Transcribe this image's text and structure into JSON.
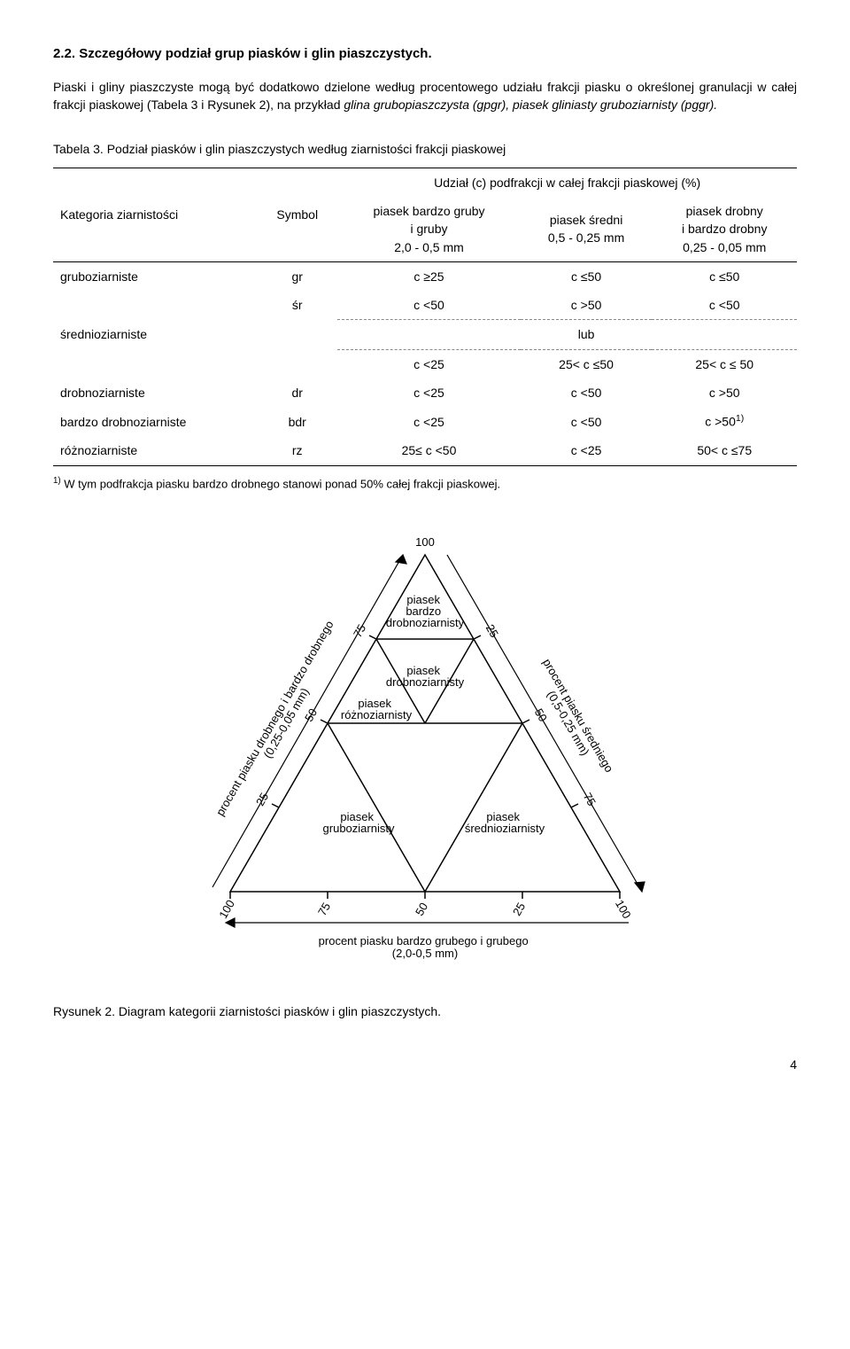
{
  "section": {
    "number": "2.2.",
    "title": "Szczegółowy podział grup piasków i glin piaszczystych."
  },
  "paragraph": {
    "pre_italic": "Piaski i gliny piaszczyste mogą być dodatkowo dzielone według procentowego udziału frakcji piasku o określonej granulacji w całej frakcji piaskowej (Tabela 3 i Rysunek 2), na przykład ",
    "italic": "glina grubopiaszczysta (gpgr), piasek gliniasty gruboziarnisty (pggr).",
    "post_italic": ""
  },
  "table": {
    "caption": "Tabela 3. Podział piasków i glin piaszczystych według ziarnistości frakcji piaskowej",
    "head_superlabel": "Udział (c) podfrakcji w całej frakcji piaskowej (%)",
    "head_cat": "Kategoria ziarnistości",
    "head_sym": "Symbol",
    "head_col1_a": "piasek bardzo gruby",
    "head_col1_b": "i gruby",
    "head_col1_c": "2,0 - 0,5 mm",
    "head_col2_a": "piasek średni",
    "head_col2_b": "0,5 - 0,25 mm",
    "head_col3_a": "piasek drobny",
    "head_col3_b": "i bardzo drobny",
    "head_col3_c": "0,25 - 0,05 mm",
    "rows": [
      {
        "cat": "gruboziarniste",
        "sym": "gr",
        "c1": "c ≥25",
        "c2": "c ≤50",
        "c3": "c ≤50"
      },
      {
        "cat_mid": "średnioziarniste",
        "sym": "śr",
        "r1": {
          "c1": "c <50",
          "c2": "c >50",
          "c3": "c <50"
        },
        "lub": "lub",
        "r2": {
          "c1": "c <25",
          "c2": "25< c ≤50",
          "c3": "25< c ≤ 50"
        }
      },
      {
        "cat": "drobnoziarniste",
        "sym": "dr",
        "c1": "c <25",
        "c2": "c <50",
        "c3": "c >50"
      },
      {
        "cat": "bardzo drobnoziarniste",
        "sym": "bdr",
        "c1": "c <25",
        "c2": "c <50",
        "c3_html": "c >50<sup>1)</sup>"
      },
      {
        "cat": "różnoziarniste",
        "sym": "rz",
        "c1": "25≤ c <50",
        "c2": "c <25",
        "c3": "50< c ≤75"
      }
    ],
    "footnote_html": "<sup>1)</sup> W tym podfrakcja piasku bardzo drobnego stanowi ponad 50% całej frakcji piaskowej."
  },
  "triangle": {
    "type": "ternary-diagram",
    "stroke": "#000000",
    "fill": "#ffffff",
    "tick_values": [
      "25",
      "50",
      "75",
      "100"
    ],
    "top_tick": "100",
    "axis_left_label_a": "procent piasku drobnego i bardzo drobnego",
    "axis_left_label_b": "(0,25-0,05 mm)",
    "axis_right_label_a": "procent piasku średniego",
    "axis_right_label_b": "(0,5-0,25 mm)",
    "axis_bottom_label_a": "procent piasku bardzo grubego i grubego",
    "axis_bottom_label_b": "(2,0-0,5 mm)",
    "region_labels": {
      "top1": "piasek",
      "top2": "bardzo",
      "top3": "drobnoziarnisty",
      "upper_mid1": "piasek",
      "upper_mid2": "drobnoziarnisty",
      "mid_left1": "piasek",
      "mid_left2": "różnoziarnisty",
      "lower_left1": "piasek",
      "lower_left2": "gruboziarnisty",
      "lower_right1": "piasek",
      "lower_right2": "średnioziarnisty"
    }
  },
  "figure_caption": "Rysunek 2. Diagram kategorii ziarnistości piasków i glin piaszczystych.",
  "page_number": "4",
  "colors": {
    "text": "#000000",
    "background": "#ffffff",
    "rule": "#000000",
    "dashed": "#888888"
  }
}
